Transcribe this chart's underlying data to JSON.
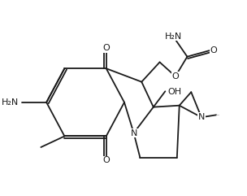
{
  "bg": "#ffffff",
  "lc": "#1a1a1a",
  "lw": 1.3,
  "fs": 8.0,
  "fig_w": 3.04,
  "fig_h": 2.41,
  "dpi": 100,
  "xlim": [
    0,
    304
  ],
  "ylim": [
    0,
    241
  ]
}
